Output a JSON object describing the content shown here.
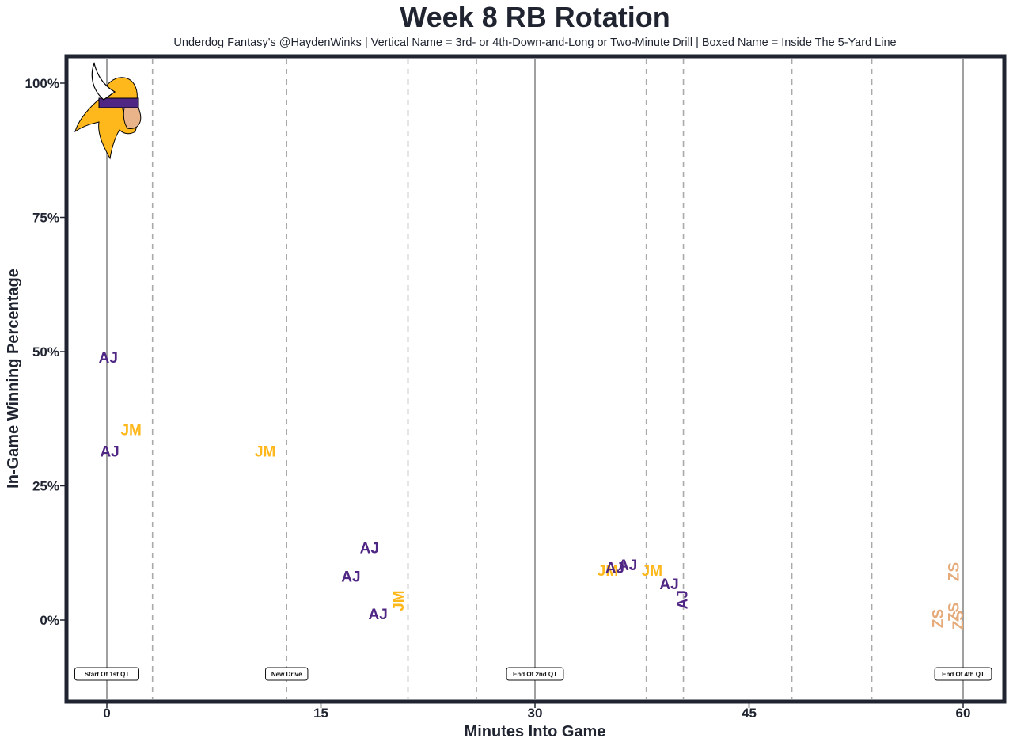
{
  "chart_data": {
    "type": "scatter",
    "title": "Week 8 RB Rotation",
    "subtitle": "Underdog Fantasy's @HaydenWinks | Vertical Name = 3rd- or 4th-Down-and-Long or Two-Minute Drill | Boxed Name = Inside The 5-Yard Line",
    "xlabel": "Minutes Into Game",
    "ylabel": "In-Game Winning Percentage",
    "xlim": [
      -3,
      63
    ],
    "ylim": [
      -15,
      105
    ],
    "x_ticks": [
      0,
      15,
      30,
      45,
      60
    ],
    "x_tick_labels": [
      "0",
      "15",
      "30",
      "45",
      "60"
    ],
    "y_ticks": [
      0,
      25,
      50,
      75,
      100
    ],
    "y_tick_labels": [
      "0%",
      "25%",
      "50%",
      "75%",
      "100%"
    ],
    "grid": false,
    "logo": "minnesota-vikings-logo",
    "colors": {
      "AJ": "#4f2683",
      "JM": "#ffb81c",
      "ZS": "#e5ab7b",
      "frame": "#1f2430",
      "quarter_line": "#777777",
      "drive_line": "#aaaaaa"
    },
    "quarter_lines": [
      0,
      30,
      60
    ],
    "drive_lines": [
      3.2,
      12.6,
      21.1,
      25.9,
      37.8,
      40.4,
      48.0,
      53.6
    ],
    "annotations": [
      {
        "x": 0,
        "label": "Start Of 1st QT"
      },
      {
        "x": 12.6,
        "label": "New Drive"
      },
      {
        "x": 30,
        "label": "End Of 2nd QT"
      },
      {
        "x": 60,
        "label": "End Of 4th QT"
      }
    ],
    "points": [
      {
        "label": "AJ",
        "x": 0.1,
        "y": 49,
        "vertical": false
      },
      {
        "label": "JM",
        "x": 1.7,
        "y": 35.5,
        "vertical": false
      },
      {
        "label": "AJ",
        "x": 0.2,
        "y": 31.5,
        "vertical": false
      },
      {
        "label": "JM",
        "x": 11.1,
        "y": 31.5,
        "vertical": false
      },
      {
        "label": "AJ",
        "x": 18.4,
        "y": 13.5,
        "vertical": false
      },
      {
        "label": "AJ",
        "x": 17.1,
        "y": 8.2,
        "vertical": false
      },
      {
        "label": "JM",
        "x": 20.4,
        "y": 3.6,
        "vertical": true
      },
      {
        "label": "AJ",
        "x": 19.0,
        "y": 1.2,
        "vertical": false
      },
      {
        "label": "JM",
        "x": 35.1,
        "y": 9.3,
        "vertical": false
      },
      {
        "label": "AJ",
        "x": 35.6,
        "y": 9.8,
        "vertical": false
      },
      {
        "label": "AJ",
        "x": 36.5,
        "y": 10.3,
        "vertical": false
      },
      {
        "label": "JM",
        "x": 38.2,
        "y": 9.3,
        "vertical": false
      },
      {
        "label": "AJ",
        "x": 39.4,
        "y": 6.8,
        "vertical": false
      },
      {
        "label": "AJ",
        "x": 40.3,
        "y": 3.8,
        "vertical": true
      },
      {
        "label": "ZS",
        "x": 59.3,
        "y": 9.0,
        "vertical": true
      },
      {
        "label": "ZS",
        "x": 59.3,
        "y": 1.5,
        "vertical": true
      },
      {
        "label": "ZS",
        "x": 58.2,
        "y": 0.3,
        "vertical": true
      },
      {
        "label": "ZS",
        "x": 59.6,
        "y": 0.0,
        "vertical": true
      }
    ]
  }
}
